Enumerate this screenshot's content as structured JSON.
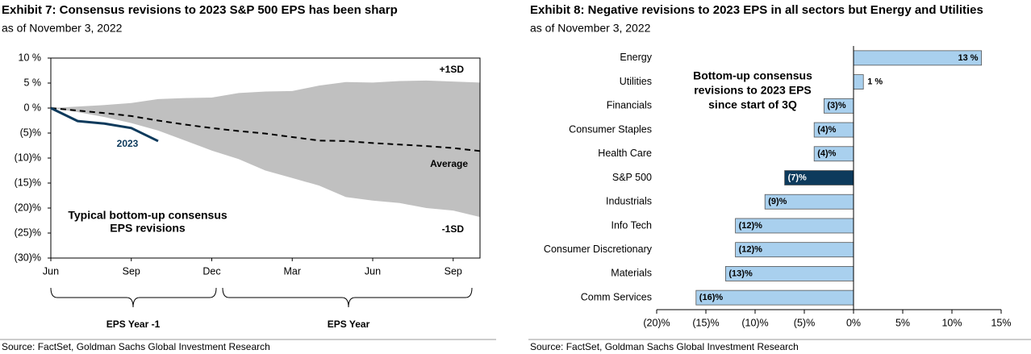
{
  "chart_data": [
    {
      "type": "line",
      "title": "Exhibit 7: Consensus revisions to 2023 S&P 500 EPS has been sharp",
      "subtitle": "as of November 3, 2022",
      "source": "Source: FactSet, Goldman Sachs Global Investment Research",
      "x": [
        0,
        1,
        2,
        3,
        4,
        5,
        6,
        7,
        8,
        9,
        10,
        11,
        12,
        13,
        14,
        15,
        16
      ],
      "xlim": [
        0,
        16
      ],
      "xticks": [
        {
          "value": 0,
          "label": "Jun"
        },
        {
          "value": 3,
          "label": "Sep"
        },
        {
          "value": 6,
          "label": "Dec"
        },
        {
          "value": 9,
          "label": "Mar"
        },
        {
          "value": 12,
          "label": "Jun"
        },
        {
          "value": 15,
          "label": "Sep"
        }
      ],
      "ylim": [
        -30,
        10
      ],
      "yticks": [
        {
          "value": 10,
          "label": "10 %"
        },
        {
          "value": 5,
          "label": "5 %"
        },
        {
          "value": 0,
          "label": "0 %"
        },
        {
          "value": -5,
          "label": "(5)%"
        },
        {
          "value": -10,
          "label": "(10)%"
        },
        {
          "value": -15,
          "label": "(15)%"
        },
        {
          "value": -20,
          "label": "(20)%"
        },
        {
          "value": -25,
          "label": "(25)%"
        },
        {
          "value": -30,
          "label": "(30)%"
        }
      ],
      "series": [
        {
          "name": "+1SD",
          "kind": "area",
          "color": "#c0c0c0",
          "values": [
            0,
            0.3,
            0.6,
            1.0,
            1.8,
            2.0,
            2.1,
            3.0,
            3.3,
            3.4,
            4.5,
            5.2,
            5.1,
            5.4,
            5.5,
            5.3,
            5.1
          ]
        },
        {
          "name": "-1SD",
          "kind": "area",
          "color": "#c0c0c0",
          "values": [
            0,
            -0.8,
            -1.8,
            -3.0,
            -4.5,
            -6.5,
            -8.5,
            -10.2,
            -12.5,
            -14.0,
            -15.5,
            -17.8,
            -18.5,
            -19.0,
            -20.0,
            -20.5,
            -21.8
          ]
        },
        {
          "name": "Average",
          "kind": "line",
          "dash": true,
          "color": "#000000",
          "values": [
            0,
            -0.5,
            -1.0,
            -1.6,
            -2.5,
            -3.3,
            -4.0,
            -4.6,
            -5.1,
            -5.8,
            -6.5,
            -6.6,
            -7.0,
            -7.3,
            -7.6,
            -8.0,
            -8.6
          ]
        },
        {
          "name": "2023",
          "kind": "line",
          "dash": false,
          "color": "#0d3a5c",
          "values": [
            0,
            -2.6,
            -3.1,
            -4.0,
            -6.6,
            null,
            null,
            null,
            null,
            null,
            null,
            null,
            null,
            null,
            null,
            null,
            null
          ]
        }
      ],
      "annotation": [
        "Typical bottom-up consensus",
        "EPS revisions"
      ],
      "brackets": [
        "EPS Year -1",
        "EPS Year"
      ]
    },
    {
      "type": "hbar",
      "title": "Exhibit 8: Negative revisions to 2023 EPS in all sectors but Energy and Utilities",
      "subtitle": "as of November 3, 2022",
      "source": "Source: FactSet, Goldman Sachs Global Investment Research",
      "categories": [
        "Energy",
        "Utilities",
        "Financials",
        "Consumer Staples",
        "Health Care",
        "S&P 500",
        "Industrials",
        "Info Tech",
        "Consumer Discretionary",
        "Materials",
        "Comm Services"
      ],
      "values": [
        13,
        1,
        -3,
        -4,
        -4,
        -7,
        -9,
        -12,
        -12,
        -13,
        -16
      ],
      "value_labels": [
        "13 %",
        "1 %",
        "(3)%",
        "(4)%",
        "(4)%",
        "(7)%",
        "(9)%",
        "(12)%",
        "(12)%",
        "(13)%",
        "(16)%"
      ],
      "colors": [
        "#a9d0ee",
        "#a9d0ee",
        "#a9d0ee",
        "#a9d0ee",
        "#a9d0ee",
        "#0d3a5c",
        "#a9d0ee",
        "#a9d0ee",
        "#a9d0ee",
        "#a9d0ee",
        "#a9d0ee"
      ],
      "xlim": [
        -20,
        15
      ],
      "xticks": [
        {
          "value": -20,
          "label": "(20)%"
        },
        {
          "value": -15,
          "label": "(15)%"
        },
        {
          "value": -10,
          "label": "(10)%"
        },
        {
          "value": -5,
          "label": "(5)%"
        },
        {
          "value": 0,
          "label": "0%"
        },
        {
          "value": 5,
          "label": "5%"
        },
        {
          "value": 10,
          "label": "10%"
        },
        {
          "value": 15,
          "label": "15%"
        }
      ],
      "annotation": [
        "Bottom-up consensus",
        "revisions to 2023 EPS",
        "since start of 3Q"
      ]
    }
  ]
}
